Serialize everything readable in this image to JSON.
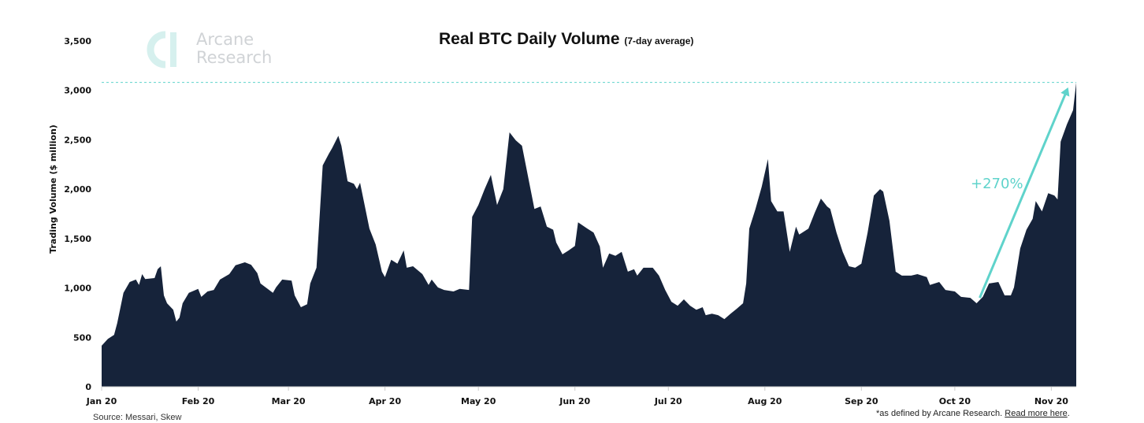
{
  "brand": {
    "logo_line1": "Arcane",
    "logo_line2": "Research"
  },
  "source": "Source: Messari, Skew",
  "footnote": {
    "text": "*as defined by Arcane Research. ",
    "link": "Read more here",
    "end": "."
  },
  "colors": {
    "area": "#16233a",
    "accent": "#5fd3cb"
  },
  "chart_data": {
    "type": "area",
    "title": "Real BTC Daily Volume",
    "subtitle": "(7-day average)",
    "xlabel": "",
    "ylabel": "Trading Volume ($ million)",
    "ylim": [
      0,
      3500
    ],
    "yticks": [
      0,
      500,
      1000,
      1500,
      2000,
      2500,
      3000,
      3500
    ],
    "ytick_labels": [
      "0",
      "500",
      "1,000",
      "1,500",
      "2,000",
      "2,500",
      "3,000",
      "3,500"
    ],
    "xlim_days": [
      0,
      313
    ],
    "xticks": [
      {
        "day": 0,
        "label": "Jan 20"
      },
      {
        "day": 31,
        "label": "Feb 20"
      },
      {
        "day": 60,
        "label": "Mar 20"
      },
      {
        "day": 91,
        "label": "Apr 20"
      },
      {
        "day": 121,
        "label": "May 20"
      },
      {
        "day": 152,
        "label": "Jun 20"
      },
      {
        "day": 182,
        "label": "Jul 20"
      },
      {
        "day": 213,
        "label": "Aug 20"
      },
      {
        "day": 244,
        "label": "Sep 20"
      },
      {
        "day": 274,
        "label": "Oct 20"
      },
      {
        "day": 305,
        "label": "Nov 20"
      }
    ],
    "x_unit": "days since Jan 1 2020",
    "x": [
      0,
      2,
      4,
      5,
      7,
      9,
      11,
      12,
      13,
      14,
      17,
      18,
      19,
      20,
      21,
      23,
      24,
      25,
      26,
      28,
      31,
      32,
      34,
      36,
      38,
      41,
      43,
      46,
      48,
      50,
      51,
      55,
      56,
      58,
      61,
      62,
      64,
      66,
      67,
      69,
      71,
      73,
      74,
      76,
      77,
      79,
      81,
      82,
      83,
      86,
      88,
      90,
      91,
      93,
      95,
      97,
      98,
      100,
      103,
      105,
      106,
      108,
      110,
      113,
      115,
      118,
      119,
      121,
      123,
      125,
      127,
      129,
      131,
      133,
      135,
      137,
      139,
      141,
      143,
      145,
      146,
      148,
      150,
      152,
      153,
      156,
      158,
      160,
      161,
      163,
      165,
      167,
      169,
      171,
      172,
      174,
      177,
      179,
      181,
      183,
      185,
      187,
      189,
      191,
      193,
      194,
      196,
      198,
      200,
      202,
      204,
      206,
      207,
      208,
      210,
      212,
      214,
      215,
      217,
      219,
      221,
      223,
      224,
      227,
      229,
      231,
      233,
      234,
      236,
      238,
      240,
      242,
      244,
      246,
      248,
      250,
      251,
      253,
      255,
      257,
      260,
      262,
      265,
      266,
      269,
      271,
      274,
      276,
      279,
      281,
      283,
      285,
      288,
      290,
      292,
      293,
      295,
      297,
      299,
      300,
      302,
      304,
      306,
      307,
      308,
      310,
      312,
      313
    ],
    "values": [
      415,
      485,
      525,
      645,
      950,
      1060,
      1085,
      1030,
      1140,
      1090,
      1100,
      1190,
      1220,
      925,
      845,
      780,
      660,
      700,
      845,
      950,
      990,
      910,
      965,
      980,
      1085,
      1140,
      1230,
      1260,
      1235,
      1150,
      1045,
      950,
      1005,
      1085,
      1075,
      925,
      805,
      835,
      1045,
      1205,
      2240,
      2360,
      2415,
      2540,
      2440,
      2080,
      2055,
      2000,
      2065,
      1600,
      1440,
      1165,
      1110,
      1285,
      1245,
      1380,
      1205,
      1220,
      1140,
      1030,
      1085,
      1005,
      980,
      965,
      990,
      980,
      1720,
      1840,
      2000,
      2145,
      1840,
      2000,
      2575,
      2495,
      2440,
      2120,
      1800,
      1825,
      1620,
      1590,
      1460,
      1340,
      1380,
      1425,
      1665,
      1600,
      1560,
      1420,
      1205,
      1350,
      1325,
      1365,
      1165,
      1190,
      1125,
      1205,
      1205,
      1125,
      980,
      860,
      820,
      885,
      820,
      780,
      805,
      725,
      740,
      725,
      685,
      740,
      790,
      845,
      1045,
      1600,
      1800,
      2025,
      2305,
      1880,
      1775,
      1775,
      1365,
      1620,
      1540,
      1600,
      1760,
      1905,
      1825,
      1800,
      1560,
      1365,
      1220,
      1205,
      1245,
      1560,
      1935,
      2000,
      1975,
      1680,
      1165,
      1125,
      1125,
      1140,
      1110,
      1030,
      1060,
      980,
      965,
      910,
      900,
      845,
      910,
      1045,
      1060,
      925,
      925,
      1005,
      1400,
      1590,
      1700,
      1880,
      1775,
      1960,
      1935,
      1895,
      2480,
      2655,
      2800,
      3080
    ],
    "reference_line": {
      "value": 3080,
      "style": "dashed"
    },
    "annotation": {
      "text": "+270%",
      "from": {
        "day": 282,
        "value": 900
      },
      "to": {
        "day": 310,
        "value": 3000
      }
    }
  }
}
